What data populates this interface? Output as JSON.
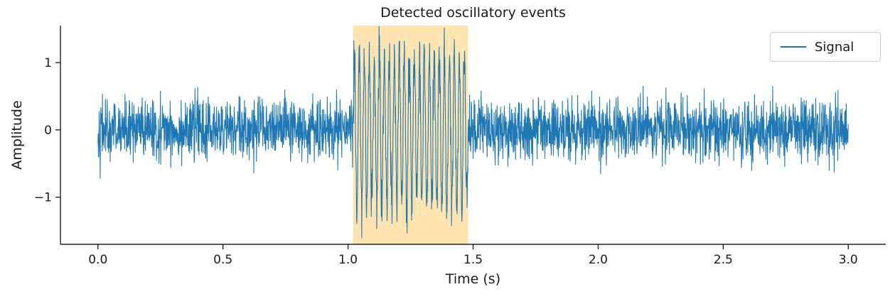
{
  "chart_data": {
    "type": "line",
    "title": "Detected oscillatory events",
    "xlabel": "Time (s)",
    "ylabel": "Amplitude",
    "xlim": [
      -0.15,
      3.15
    ],
    "ylim": [
      -1.7,
      1.55
    ],
    "x_ticks": [
      0.0,
      0.5,
      1.0,
      1.5,
      2.0,
      2.5,
      3.0
    ],
    "x_tick_labels": [
      "0.0",
      "0.5",
      "1.0",
      "1.5",
      "2.0",
      "2.5",
      "3.0"
    ],
    "y_ticks": [
      -1,
      0,
      1
    ],
    "y_tick_labels": [
      "−1",
      "0",
      "1"
    ],
    "grid": false,
    "legend": {
      "position": "upper right",
      "entries": [
        {
          "label": "Signal",
          "color": "#1f77b4"
        }
      ]
    },
    "highlight_span": {
      "x0": 1.02,
      "x1": 1.48,
      "color": "#ffe4b2"
    },
    "series": [
      {
        "name": "Signal",
        "color": "#1f77b4",
        "generator": {
          "kind": "gaussian_noise_with_sinusoidal_burst",
          "duration_s": 3.0,
          "sample_rate_hz": 1000,
          "noise_std": 0.22,
          "burst": {
            "start_s": 1.02,
            "end_s": 1.48,
            "frequency_hz": 50,
            "amplitude": 1.1
          },
          "seed": 42
        }
      }
    ],
    "axis_color": "#000000",
    "text_color": "#1a1a1a"
  }
}
